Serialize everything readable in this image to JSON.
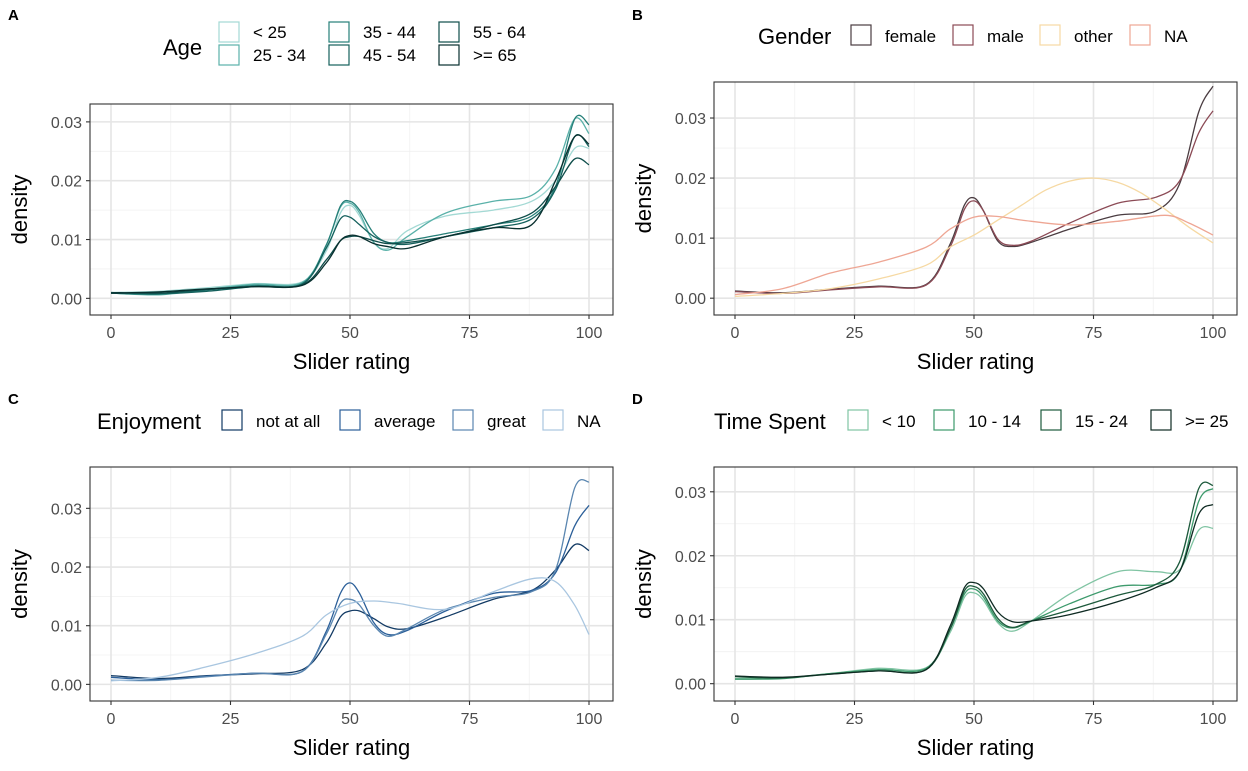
{
  "chart_data": [
    {
      "type": "line",
      "panel": "A",
      "xlabel": "Slider rating",
      "ylabel": "density",
      "xlim": [
        0,
        100
      ],
      "ylim": [
        0,
        0.031
      ],
      "x_ticks": [
        "0",
        "25",
        "50",
        "75",
        "100"
      ],
      "y_ticks": [
        "0.00",
        "0.01",
        "0.02",
        "0.03"
      ],
      "grid": true,
      "legend": {
        "title": "Age",
        "placement": "top"
      },
      "series": [
        {
          "name": "< 25",
          "color": "#a3d9d4",
          "x": [
            0,
            10,
            20,
            30,
            40,
            45,
            48,
            50,
            52,
            55,
            58,
            62,
            70,
            80,
            88,
            93,
            97,
            100
          ],
          "y": [
            0.001,
            0.0012,
            0.0018,
            0.0025,
            0.0028,
            0.008,
            0.0145,
            0.0158,
            0.014,
            0.0095,
            0.0085,
            0.0115,
            0.014,
            0.015,
            0.0165,
            0.02,
            0.0255,
            0.0255
          ]
        },
        {
          "name": "25 - 34",
          "color": "#5ab1a9",
          "x": [
            0,
            10,
            20,
            30,
            40,
            45,
            48,
            50,
            52,
            55,
            58,
            62,
            70,
            80,
            88,
            93,
            97,
            100
          ],
          "y": [
            0.0009,
            0.0006,
            0.0015,
            0.0024,
            0.0027,
            0.009,
            0.0155,
            0.0162,
            0.0145,
            0.0095,
            0.0082,
            0.0105,
            0.0145,
            0.0165,
            0.0175,
            0.022,
            0.0305,
            0.028
          ]
        },
        {
          "name": "35 - 44",
          "color": "#267f78",
          "x": [
            0,
            10,
            20,
            30,
            40,
            45,
            48,
            50,
            52,
            55,
            58,
            62,
            70,
            80,
            88,
            93,
            97,
            100
          ],
          "y": [
            0.0009,
            0.0007,
            0.0014,
            0.0022,
            0.0025,
            0.009,
            0.0157,
            0.0165,
            0.015,
            0.011,
            0.0095,
            0.0098,
            0.011,
            0.0125,
            0.014,
            0.019,
            0.0305,
            0.0295
          ]
        },
        {
          "name": "45 - 54",
          "color": "#14605c",
          "x": [
            0,
            10,
            20,
            30,
            40,
            45,
            48,
            50,
            52,
            55,
            58,
            62,
            70,
            80,
            88,
            93,
            97,
            100
          ],
          "y": [
            0.0009,
            0.0008,
            0.0012,
            0.002,
            0.0024,
            0.0085,
            0.0135,
            0.0138,
            0.0125,
            0.0105,
            0.0095,
            0.0092,
            0.0105,
            0.012,
            0.0135,
            0.0185,
            0.0275,
            0.0258
          ]
        },
        {
          "name": "55 - 64",
          "color": "#0e4d4a",
          "x": [
            0,
            10,
            20,
            30,
            40,
            45,
            48,
            50,
            52,
            55,
            58,
            62,
            70,
            80,
            88,
            93,
            97,
            100
          ],
          "y": [
            0.001,
            0.0009,
            0.0015,
            0.002,
            0.0023,
            0.0065,
            0.0098,
            0.0105,
            0.0105,
            0.0098,
            0.0093,
            0.0095,
            0.0105,
            0.0125,
            0.0145,
            0.019,
            0.0237,
            0.0227
          ]
        },
        {
          "name": ">= 65",
          "color": "#082f2e",
          "x": [
            0,
            10,
            20,
            30,
            40,
            45,
            48,
            50,
            52,
            55,
            58,
            62,
            70,
            80,
            88,
            93,
            97,
            100
          ],
          "y": [
            0.0009,
            0.0011,
            0.0016,
            0.002,
            0.0022,
            0.006,
            0.0098,
            0.0107,
            0.0105,
            0.0093,
            0.0088,
            0.0085,
            0.0105,
            0.012,
            0.0125,
            0.02,
            0.0275,
            0.0262
          ]
        }
      ]
    },
    {
      "type": "line",
      "panel": "B",
      "xlabel": "Slider rating",
      "ylabel": "density",
      "xlim": [
        0,
        100
      ],
      "ylim": [
        0,
        0.034
      ],
      "x_ticks": [
        "0",
        "25",
        "50",
        "75",
        "100"
      ],
      "y_ticks": [
        "0.00",
        "0.01",
        "0.02",
        "0.03"
      ],
      "grid": true,
      "legend": {
        "title": "Gender",
        "placement": "top"
      },
      "series": [
        {
          "name": "female",
          "color": "#4a3c41",
          "x": [
            0,
            10,
            20,
            30,
            40,
            45,
            48,
            50,
            52,
            55,
            58,
            62,
            70,
            80,
            88,
            93,
            97,
            100
          ],
          "y": [
            0.0012,
            0.0009,
            0.0015,
            0.002,
            0.0023,
            0.009,
            0.0155,
            0.0167,
            0.0145,
            0.0095,
            0.0086,
            0.0093,
            0.0115,
            0.0138,
            0.0145,
            0.019,
            0.031,
            0.0353
          ]
        },
        {
          "name": "male",
          "color": "#8b4a55",
          "x": [
            0,
            10,
            20,
            30,
            40,
            45,
            48,
            50,
            52,
            55,
            58,
            62,
            70,
            80,
            88,
            93,
            97,
            100
          ],
          "y": [
            0.0011,
            0.0008,
            0.0014,
            0.0019,
            0.0022,
            0.0085,
            0.0148,
            0.0162,
            0.0145,
            0.0098,
            0.0088,
            0.0095,
            0.0125,
            0.0158,
            0.0168,
            0.0195,
            0.0275,
            0.0312
          ]
        },
        {
          "name": "other",
          "color": "#f6d9a3",
          "x": [
            0,
            10,
            20,
            30,
            40,
            45,
            50,
            55,
            60,
            65,
            70,
            75,
            80,
            85,
            90,
            95,
            100
          ],
          "y": [
            0.0003,
            0.0008,
            0.0016,
            0.0032,
            0.0055,
            0.0085,
            0.0105,
            0.013,
            0.0155,
            0.018,
            0.0195,
            0.02,
            0.0193,
            0.0175,
            0.0148,
            0.0118,
            0.0092
          ]
        },
        {
          "name": "NA",
          "color": "#eea694",
          "x": [
            0,
            10,
            20,
            30,
            40,
            45,
            50,
            55,
            60,
            70,
            80,
            90,
            95,
            100
          ],
          "y": [
            0.0006,
            0.0016,
            0.0042,
            0.006,
            0.0085,
            0.0115,
            0.0135,
            0.0136,
            0.013,
            0.0122,
            0.0128,
            0.0138,
            0.0125,
            0.0105
          ]
        }
      ]
    },
    {
      "type": "line",
      "panel": "C",
      "xlabel": "Slider rating",
      "ylabel": "density",
      "xlim": [
        0,
        100
      ],
      "ylim": [
        0,
        0.035
      ],
      "x_ticks": [
        "0",
        "25",
        "50",
        "75",
        "100"
      ],
      "y_ticks": [
        "0.00",
        "0.01",
        "0.02",
        "0.03"
      ],
      "grid": true,
      "legend": {
        "title": "Enjoyment",
        "placement": "top"
      },
      "series": [
        {
          "name": "not at all",
          "color": "#123a64",
          "x": [
            0,
            10,
            20,
            30,
            40,
            45,
            48,
            50,
            52,
            55,
            58,
            62,
            70,
            80,
            88,
            93,
            97,
            100
          ],
          "y": [
            0.0015,
            0.001,
            0.0015,
            0.0018,
            0.0025,
            0.007,
            0.0115,
            0.0125,
            0.0125,
            0.0112,
            0.0098,
            0.0095,
            0.0115,
            0.0145,
            0.016,
            0.0195,
            0.0238,
            0.0228
          ]
        },
        {
          "name": "average",
          "color": "#2b5f99",
          "x": [
            0,
            10,
            20,
            30,
            40,
            45,
            48,
            50,
            52,
            55,
            58,
            62,
            70,
            80,
            88,
            93,
            97,
            100
          ],
          "y": [
            0.0012,
            0.0008,
            0.0014,
            0.0019,
            0.0022,
            0.009,
            0.0155,
            0.0173,
            0.0155,
            0.0105,
            0.0085,
            0.0092,
            0.0125,
            0.0155,
            0.016,
            0.019,
            0.027,
            0.0305
          ]
        },
        {
          "name": "great",
          "color": "#5a86b0",
          "x": [
            0,
            10,
            20,
            30,
            40,
            45,
            48,
            50,
            52,
            55,
            58,
            62,
            70,
            80,
            88,
            93,
            97,
            100
          ],
          "y": [
            0.0007,
            0.0007,
            0.0013,
            0.0019,
            0.0022,
            0.0085,
            0.0138,
            0.0145,
            0.0135,
            0.01,
            0.0082,
            0.0095,
            0.0128,
            0.0148,
            0.0158,
            0.0195,
            0.0335,
            0.0345
          ]
        },
        {
          "name": "NA",
          "color": "#a9c6e0",
          "x": [
            0,
            10,
            20,
            30,
            40,
            45,
            50,
            55,
            60,
            70,
            80,
            88,
            93,
            97,
            100
          ],
          "y": [
            0.0006,
            0.0012,
            0.003,
            0.0052,
            0.0082,
            0.0118,
            0.0138,
            0.0142,
            0.0138,
            0.0128,
            0.0158,
            0.018,
            0.0175,
            0.0135,
            0.0085
          ]
        }
      ]
    },
    {
      "type": "line",
      "panel": "D",
      "xlabel": "Slider rating",
      "ylabel": "density",
      "xlim": [
        0,
        100
      ],
      "ylim": [
        0,
        0.032
      ],
      "x_ticks": [
        "0",
        "25",
        "50",
        "75",
        "100"
      ],
      "y_ticks": [
        "0.00",
        "0.01",
        "0.02",
        "0.03"
      ],
      "grid": true,
      "legend": {
        "title": "Time Spent",
        "placement": "top"
      },
      "series": [
        {
          "name": "< 10",
          "color": "#80c4a3",
          "x": [
            0,
            10,
            20,
            30,
            40,
            45,
            48,
            50,
            52,
            55,
            58,
            62,
            70,
            80,
            88,
            93,
            97,
            100
          ],
          "y": [
            0.0008,
            0.0009,
            0.0016,
            0.0024,
            0.0025,
            0.008,
            0.0135,
            0.0142,
            0.013,
            0.0095,
            0.0082,
            0.0098,
            0.014,
            0.0175,
            0.0175,
            0.0178,
            0.024,
            0.0243
          ]
        },
        {
          "name": "10 - 14",
          "color": "#3d9a6c",
          "x": [
            0,
            10,
            20,
            30,
            40,
            45,
            48,
            50,
            52,
            55,
            58,
            62,
            70,
            80,
            88,
            93,
            97,
            100
          ],
          "y": [
            0.0007,
            0.0008,
            0.0016,
            0.0022,
            0.0024,
            0.0085,
            0.014,
            0.0148,
            0.0135,
            0.0098,
            0.0087,
            0.0098,
            0.0125,
            0.0152,
            0.0155,
            0.0175,
            0.0285,
            0.0305
          ]
        },
        {
          "name": "15 - 24",
          "color": "#1d5a3c",
          "x": [
            0,
            10,
            20,
            30,
            40,
            45,
            48,
            50,
            52,
            55,
            58,
            62,
            70,
            80,
            88,
            93,
            97,
            100
          ],
          "y": [
            0.0011,
            0.0009,
            0.0015,
            0.002,
            0.0022,
            0.0085,
            0.0145,
            0.0152,
            0.014,
            0.0102,
            0.0088,
            0.0098,
            0.0115,
            0.0138,
            0.0155,
            0.019,
            0.0305,
            0.031
          ]
        },
        {
          "name": ">= 25",
          "color": "#0e2a22",
          "x": [
            0,
            10,
            20,
            30,
            40,
            45,
            48,
            50,
            52,
            55,
            58,
            62,
            70,
            80,
            88,
            93,
            97,
            100
          ],
          "y": [
            0.0012,
            0.001,
            0.0015,
            0.002,
            0.0022,
            0.009,
            0.015,
            0.0158,
            0.0148,
            0.0112,
            0.0097,
            0.0098,
            0.0108,
            0.0128,
            0.015,
            0.0175,
            0.0265,
            0.028
          ]
        }
      ]
    }
  ],
  "panels": [
    {
      "label": "A"
    },
    {
      "label": "B"
    },
    {
      "label": "C"
    },
    {
      "label": "D"
    }
  ]
}
